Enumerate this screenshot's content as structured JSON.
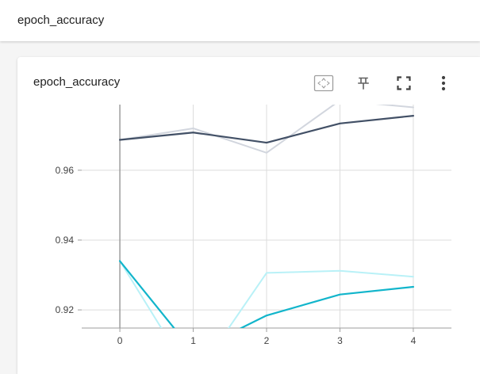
{
  "header": {
    "title": "epoch_accuracy"
  },
  "card": {
    "title": "epoch_accuracy",
    "toolbar": {
      "fit_domain": "fit-domain-icon",
      "pin": "pin-icon",
      "fullscreen": "fullscreen-icon",
      "more": "more-vert-icon"
    }
  },
  "colors": {
    "train_smoothed": "#425066",
    "train_raw": "#d2d6de",
    "validation_smoothed": "#12b5cb",
    "validation_raw": "#b9f1f7",
    "grid": "#dcdcdc",
    "axis": "#9e9e9e"
  },
  "chart_data": {
    "type": "line",
    "title": "epoch_accuracy",
    "xlabel": "",
    "ylabel": "",
    "x": [
      0,
      1,
      2,
      3,
      4
    ],
    "xticks": [
      "0",
      "1",
      "2",
      "3",
      "4"
    ],
    "yticks": [
      "0.92",
      "0.94",
      "0.96"
    ],
    "xlim": [
      -0.52,
      4.52
    ],
    "ylim": [
      0.9148,
      0.9788
    ],
    "grid": true,
    "series": [
      {
        "key": "train_raw",
        "values": [
          0.9687,
          0.972,
          0.965,
          0.98,
          0.978
        ]
      },
      {
        "key": "train_smoothed",
        "values": [
          0.9687,
          0.9708,
          0.9679,
          0.9734,
          0.9756
        ]
      },
      {
        "key": "validation_raw",
        "values": [
          0.934,
          0.9,
          0.9306,
          0.9312,
          0.9295
        ]
      },
      {
        "key": "validation_smoothed",
        "values": [
          0.934,
          0.908,
          0.9184,
          0.9244,
          0.9266
        ]
      }
    ]
  }
}
